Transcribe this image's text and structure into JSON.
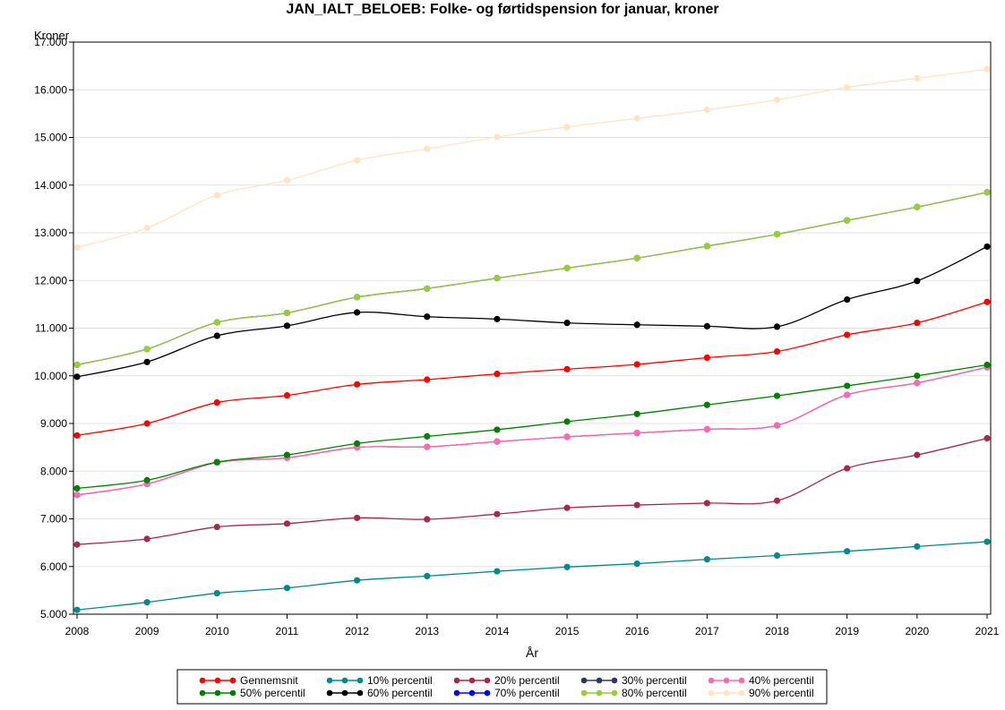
{
  "chart_data": {
    "type": "line",
    "title": "JAN_IALT_BELOEB: Folke- og førtidspension for januar, kroner",
    "xlabel": "År",
    "ylabel": "Kroner",
    "x": [
      2008,
      2009,
      2010,
      2011,
      2012,
      2013,
      2014,
      2015,
      2016,
      2017,
      2018,
      2019,
      2020,
      2021
    ],
    "xlim": [
      2008,
      2021
    ],
    "ylim": [
      5000,
      17000
    ],
    "yticks": [
      5000,
      6000,
      7000,
      8000,
      9000,
      10000,
      11000,
      12000,
      13000,
      14000,
      15000,
      16000,
      17000
    ],
    "ytick_labels": [
      "5.000",
      "6.000",
      "7.000",
      "8.000",
      "9.000",
      "10.000",
      "11.000",
      "12.000",
      "13.000",
      "14.000",
      "15.000",
      "16.000",
      "17.000"
    ],
    "grid": "horizontal",
    "legend_position": "bottom",
    "series": [
      {
        "name": "Gennemsnit",
        "color": "#ff0000",
        "values": [
          8750,
          9000,
          9440,
          9590,
          9820,
          9920,
          10040,
          10140,
          10240,
          10380,
          10510,
          10860,
          11110,
          11550
        ]
      },
      {
        "name": "10% percentil",
        "color": "#008b8b",
        "values": [
          5090,
          5250,
          5440,
          5550,
          5710,
          5800,
          5900,
          5990,
          6060,
          6150,
          6230,
          6320,
          6420,
          6520
        ]
      },
      {
        "name": "20% percentil",
        "color": "#a52a4a",
        "values": [
          6460,
          6580,
          6830,
          6900,
          7020,
          6990,
          7100,
          7230,
          7290,
          7330,
          7380,
          8060,
          8340,
          8690
        ]
      },
      {
        "name": "30% percentil",
        "color": "#33336b",
        "values": [
          7500,
          7730,
          8180,
          8280,
          8500,
          8510,
          8620,
          8720,
          8800,
          8880,
          8960,
          9600,
          9850,
          10180
        ]
      },
      {
        "name": "40% percentil",
        "color": "#ff69b4",
        "values": [
          7500,
          7730,
          8180,
          8280,
          8500,
          8510,
          8620,
          8720,
          8800,
          8880,
          8960,
          9600,
          9850,
          10180
        ]
      },
      {
        "name": "50% percentil",
        "color": "#008000",
        "values": [
          7640,
          7810,
          8190,
          8340,
          8580,
          8730,
          8870,
          9040,
          9200,
          9390,
          9580,
          9790,
          10000,
          10230
        ]
      },
      {
        "name": "60% percentil",
        "color": "#000000",
        "values": [
          9980,
          10290,
          10840,
          11050,
          11330,
          11240,
          11190,
          11110,
          11070,
          11040,
          11030,
          11600,
          11990,
          12710
        ]
      },
      {
        "name": "70% percentil",
        "color": "#0000ff",
        "values": [
          10230,
          10560,
          11120,
          11320,
          11650,
          11830,
          12050,
          12260,
          12470,
          12720,
          12970,
          13260,
          13540,
          13850
        ]
      },
      {
        "name": "80% percentil",
        "color": "#9acd32",
        "values": [
          10230,
          10560,
          11120,
          11320,
          11650,
          11830,
          12050,
          12260,
          12470,
          12720,
          12970,
          13260,
          13540,
          13850
        ]
      },
      {
        "name": "90% percentil",
        "color": "#ffe4c4",
        "values": [
          12690,
          13100,
          13790,
          14100,
          14520,
          14760,
          15010,
          15220,
          15400,
          15580,
          15790,
          16050,
          16240,
          16430
        ]
      }
    ]
  }
}
